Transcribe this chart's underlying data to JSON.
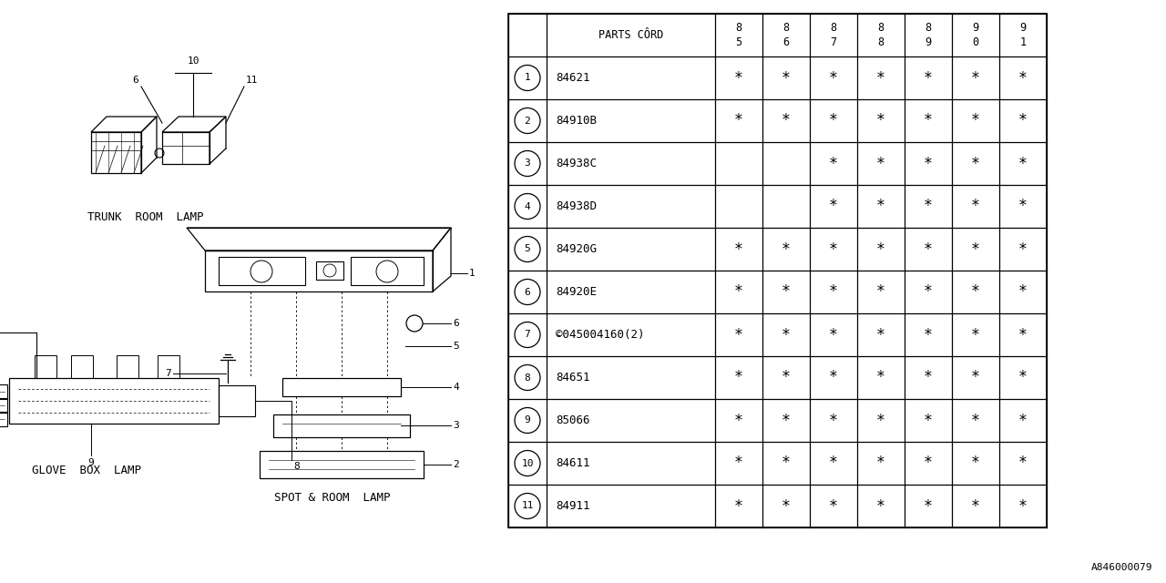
{
  "bg_color": "#ffffff",
  "header_row": [
    "",
    "PARTS CÔRD",
    "8\n5",
    "8\n6",
    "8\n7",
    "8\n8",
    "8\n9",
    "9\n0",
    "9\n1"
  ],
  "parts": [
    {
      "num": "1",
      "code": "84621",
      "cols": [
        1,
        1,
        1,
        1,
        1,
        1,
        1
      ]
    },
    {
      "num": "2",
      "code": "84910B",
      "cols": [
        1,
        1,
        1,
        1,
        1,
        1,
        1
      ]
    },
    {
      "num": "3",
      "code": "84938C",
      "cols": [
        0,
        0,
        1,
        1,
        1,
        1,
        1
      ]
    },
    {
      "num": "4",
      "code": "84938D",
      "cols": [
        0,
        0,
        1,
        1,
        1,
        1,
        1
      ]
    },
    {
      "num": "5",
      "code": "84920G",
      "cols": [
        1,
        1,
        1,
        1,
        1,
        1,
        1
      ]
    },
    {
      "num": "6",
      "code": "84920E",
      "cols": [
        1,
        1,
        1,
        1,
        1,
        1,
        1
      ]
    },
    {
      "num": "7",
      "code": "©045004160(2)",
      "cols": [
        1,
        1,
        1,
        1,
        1,
        1,
        1
      ]
    },
    {
      "num": "8",
      "code": "84651",
      "cols": [
        1,
        1,
        1,
        1,
        1,
        1,
        1
      ]
    },
    {
      "num": "9",
      "code": "85066",
      "cols": [
        1,
        1,
        1,
        1,
        1,
        1,
        1
      ]
    },
    {
      "num": "10",
      "code": "84611",
      "cols": [
        1,
        1,
        1,
        1,
        1,
        1,
        1
      ]
    },
    {
      "num": "11",
      "code": "84911",
      "cols": [
        1,
        1,
        1,
        1,
        1,
        1,
        1
      ]
    }
  ],
  "trunk_label": "TRUNK  ROOM  LAMP",
  "glove_label": "GLOVE  BOX  LAMP",
  "spot_label": "SPOT & ROOM  LAMP",
  "ref_code": "A846000079",
  "line_color": "#000000",
  "font_name": "monospace"
}
